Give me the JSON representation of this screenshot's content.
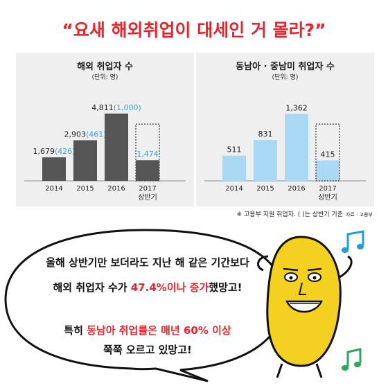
{
  "title": "“요새 해외취업이 대세인 거 몰라?”",
  "chart_data": [
    {
      "type": "bar",
      "title": "해외 취업자 수",
      "subtitle": "(단위: 명)",
      "categories": [
        "2014",
        "2015",
        "2016",
        "2017"
      ],
      "category_sublabels": [
        "",
        "",
        "",
        "상반기"
      ],
      "values": [
        1679,
        2903,
        4811,
        1474
      ],
      "value_labels": [
        "1,679",
        "2,903",
        "4,811",
        "1,474"
      ],
      "half_year_values": [
        426,
        461,
        1000,
        null
      ],
      "half_year_labels": [
        "(426)",
        "(461)",
        "(1,000)",
        ""
      ],
      "outline_last": true,
      "bar_color": "#555555",
      "accent_color": "#3a9ad9",
      "ylim": [
        0,
        5200
      ]
    },
    {
      "type": "bar",
      "title": "동남아 · 중남미 취업자 수",
      "subtitle": "(단위: 명)",
      "categories": [
        "2014",
        "2015",
        "2016",
        "2017"
      ],
      "category_sublabels": [
        "",
        "",
        "",
        "상반기"
      ],
      "values": [
        511,
        831,
        1362,
        415
      ],
      "value_labels": [
        "511",
        "831",
        "1,362",
        "415"
      ],
      "outline_last": true,
      "bar_color": "#a9d8f5",
      "ylim": [
        0,
        1480
      ]
    }
  ],
  "footnote": "※ 고용부 지원 취업자. ( )는 상반기 기준",
  "source": "자료 : 고용부",
  "bubble": {
    "line1": "올해 상반기만 보더라도 지난 해 같은 기간보다",
    "line2_a": "해외 취업자 수가 ",
    "line2_b": "47.4%이나 증가",
    "line2_c": "했망고!",
    "line3_a": "특히 ",
    "line3_b": "동남아 취업률은 매년 60% 이상",
    "line4": "쭉쭉 오르고 있망고!"
  },
  "colors": {
    "title": "#e8242b",
    "mango": "#f4d020",
    "note": "#1a9fd8"
  }
}
